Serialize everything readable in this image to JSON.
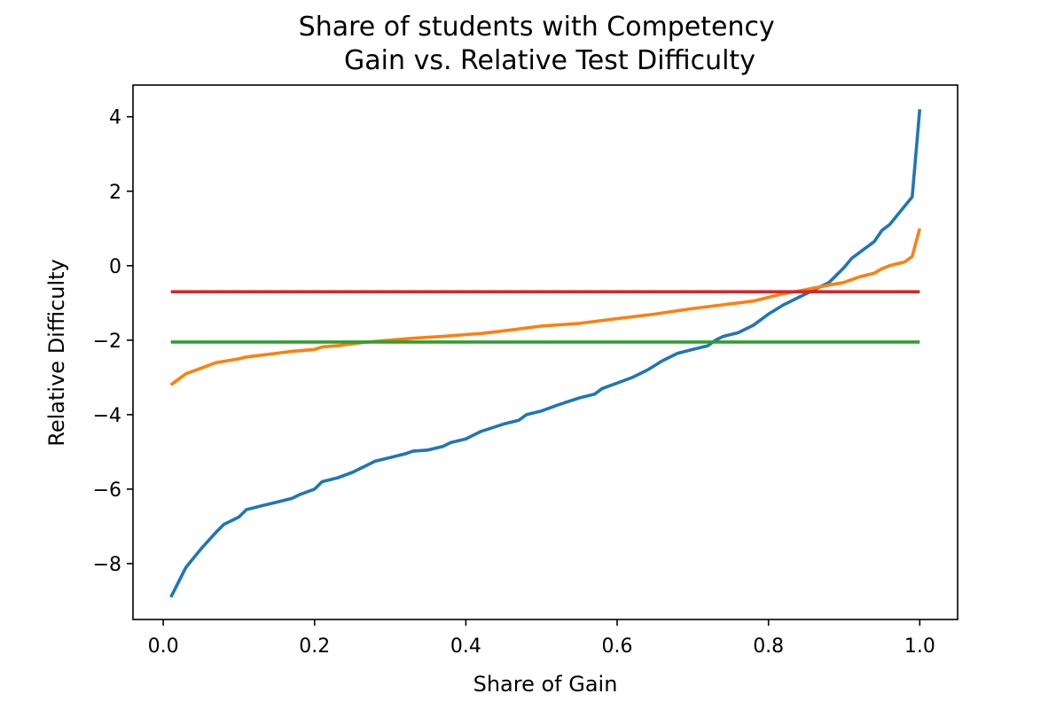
{
  "chart_data": {
    "type": "line",
    "title": "Share of students with Competency\n Gain vs. Relative Test Difficulty",
    "xlabel": "Share of Gain",
    "ylabel": "Relative Difficulty",
    "xlim": [
      -0.04,
      1.05
    ],
    "ylim": [
      -9.5,
      4.85
    ],
    "x_ticks": [
      0.0,
      0.2,
      0.4,
      0.6,
      0.8,
      1.0
    ],
    "x_tick_labels": [
      "0.0",
      "0.2",
      "0.4",
      "0.6",
      "0.8",
      "1.0"
    ],
    "y_ticks": [
      -8,
      -6,
      -4,
      -2,
      0,
      2,
      4
    ],
    "y_tick_labels": [
      "−8",
      "−6",
      "−4",
      "−2",
      "0",
      "2",
      "4"
    ],
    "grid": false,
    "legend": false,
    "series": [
      {
        "color": "#1f77b4",
        "x": [
          0.01,
          0.02,
          0.03,
          0.05,
          0.07,
          0.08,
          0.1,
          0.11,
          0.13,
          0.15,
          0.17,
          0.18,
          0.2,
          0.21,
          0.23,
          0.25,
          0.27,
          0.28,
          0.3,
          0.32,
          0.33,
          0.35,
          0.37,
          0.38,
          0.4,
          0.42,
          0.45,
          0.47,
          0.48,
          0.5,
          0.52,
          0.55,
          0.57,
          0.58,
          0.6,
          0.62,
          0.64,
          0.66,
          0.68,
          0.7,
          0.72,
          0.73,
          0.74,
          0.76,
          0.78,
          0.79,
          0.8,
          0.82,
          0.84,
          0.86,
          0.88,
          0.89,
          0.9,
          0.91,
          0.93,
          0.94,
          0.95,
          0.96,
          0.97,
          0.98,
          0.99,
          1.0
        ],
        "y": [
          -8.9,
          -8.5,
          -8.1,
          -7.6,
          -7.15,
          -6.95,
          -6.75,
          -6.55,
          -6.45,
          -6.35,
          -6.25,
          -6.15,
          -6.0,
          -5.8,
          -5.7,
          -5.55,
          -5.35,
          -5.25,
          -5.15,
          -5.05,
          -4.98,
          -4.95,
          -4.85,
          -4.75,
          -4.65,
          -4.45,
          -4.25,
          -4.15,
          -4.0,
          -3.9,
          -3.75,
          -3.55,
          -3.45,
          -3.3,
          -3.15,
          -3.0,
          -2.8,
          -2.55,
          -2.35,
          -2.25,
          -2.15,
          -2.0,
          -1.9,
          -1.8,
          -1.6,
          -1.45,
          -1.3,
          -1.05,
          -0.85,
          -0.65,
          -0.45,
          -0.25,
          -0.05,
          0.2,
          0.5,
          0.65,
          0.95,
          1.1,
          1.35,
          1.6,
          1.85,
          4.2
        ]
      },
      {
        "color": "#ff7f0e",
        "x": [
          0.01,
          0.02,
          0.03,
          0.05,
          0.07,
          0.1,
          0.11,
          0.13,
          0.15,
          0.17,
          0.2,
          0.21,
          0.23,
          0.25,
          0.27,
          0.3,
          0.33,
          0.35,
          0.37,
          0.4,
          0.42,
          0.45,
          0.47,
          0.5,
          0.55,
          0.6,
          0.65,
          0.7,
          0.72,
          0.74,
          0.76,
          0.78,
          0.8,
          0.82,
          0.84,
          0.86,
          0.88,
          0.9,
          0.92,
          0.94,
          0.95,
          0.96,
          0.98,
          0.99,
          1.0
        ],
        "y": [
          -3.2,
          -3.05,
          -2.9,
          -2.75,
          -2.6,
          -2.5,
          -2.45,
          -2.4,
          -2.35,
          -2.3,
          -2.25,
          -2.18,
          -2.15,
          -2.1,
          -2.05,
          -2.0,
          -1.95,
          -1.92,
          -1.9,
          -1.85,
          -1.82,
          -1.75,
          -1.7,
          -1.62,
          -1.55,
          -1.42,
          -1.3,
          -1.15,
          -1.1,
          -1.05,
          -1.0,
          -0.95,
          -0.85,
          -0.75,
          -0.68,
          -0.6,
          -0.52,
          -0.45,
          -0.3,
          -0.2,
          -0.08,
          0.0,
          0.1,
          0.25,
          1.0
        ]
      },
      {
        "color": "#2ca02c",
        "x": [
          0.01,
          1.0
        ],
        "y": [
          -2.05,
          -2.05
        ]
      },
      {
        "color": "#d62728",
        "x": [
          0.01,
          1.0
        ],
        "y": [
          -0.7,
          -0.7
        ]
      }
    ]
  }
}
